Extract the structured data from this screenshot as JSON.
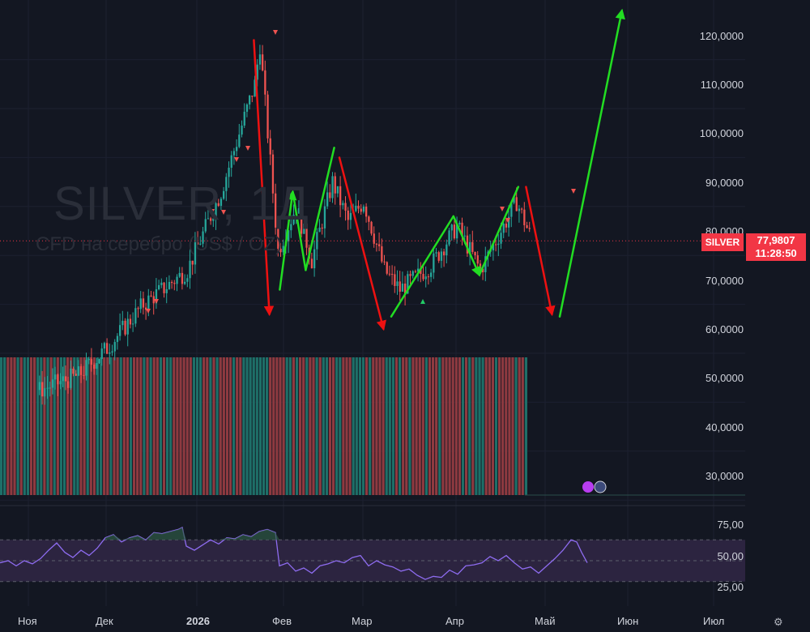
{
  "watermark": {
    "title": "SILVER, 1Д",
    "subtitle": "CFD на серебро (US$ / OZ)"
  },
  "badge": {
    "symbol": "SILVER",
    "price": "77,9807",
    "time": "11:28:50"
  },
  "price_axis": [
    "120,0000",
    "110,0000",
    "100,0000",
    "90,0000",
    "80,0000",
    "70,0000",
    "60,0000",
    "50,0000",
    "40,0000",
    "30,0000"
  ],
  "rsi_axis": [
    "75,00",
    "50,00",
    "25,00"
  ],
  "time_axis": [
    "Ноя",
    "Дек",
    "2026",
    "Фев",
    "Мар",
    "Апр",
    "Май",
    "Июн",
    "Июл"
  ],
  "icons": [
    "bolt-icon",
    "flag-icon",
    "settings-gear-icon"
  ],
  "colors": {
    "background": "#131722",
    "up": "#26a69a",
    "down": "#ef5350",
    "arrow_up": "#22dd22",
    "arrow_down": "#ee1111",
    "rsi": "#8e6cf0",
    "rsi_band": "#2c2440"
  },
  "chart_data": {
    "type": "candlestick",
    "title": "SILVER, 1Д",
    "ylabel": "",
    "ylim": [
      25,
      125
    ],
    "current_price": 77.98,
    "approx_close_path": [
      {
        "date": "2025-11-05",
        "close": 47.5
      },
      {
        "date": "2025-11-20",
        "close": 50.5
      },
      {
        "date": "2025-12-01",
        "close": 56
      },
      {
        "date": "2025-12-15",
        "close": 65
      },
      {
        "date": "2026-01-01",
        "close": 72
      },
      {
        "date": "2026-01-14",
        "close": 88
      },
      {
        "date": "2026-01-27",
        "close": 110
      },
      {
        "date": "2026-01-29",
        "close": 118
      },
      {
        "date": "2026-02-05",
        "close": 76
      },
      {
        "date": "2026-02-12",
        "close": 85
      },
      {
        "date": "2026-02-18",
        "close": 74
      },
      {
        "date": "2026-02-26",
        "close": 90
      },
      {
        "date": "2026-03-04",
        "close": 82
      },
      {
        "date": "2026-03-10",
        "close": 86
      },
      {
        "date": "2026-03-18",
        "close": 72
      },
      {
        "date": "2026-03-24",
        "close": 68
      },
      {
        "date": "2026-04-05",
        "close": 73
      },
      {
        "date": "2026-04-15",
        "close": 81
      },
      {
        "date": "2026-04-24",
        "close": 72
      },
      {
        "date": "2026-05-01",
        "close": 79
      },
      {
        "date": "2026-05-08",
        "close": 86
      },
      {
        "date": "2026-05-14",
        "close": 78
      }
    ],
    "forecast_path": [
      {
        "date": "2026-01-27",
        "price": 119
      },
      {
        "date": "2026-02-02",
        "price": 63
      },
      {
        "date": "2026-02-06",
        "price": 68
      },
      {
        "date": "2026-02-11",
        "price": 88
      },
      {
        "date": "2026-02-16",
        "price": 72
      },
      {
        "date": "2026-02-27",
        "price": 97
      },
      {
        "date": "2026-03-01",
        "price": 95
      },
      {
        "date": "2026-03-18",
        "price": 60
      },
      {
        "date": "2026-03-21",
        "price": 62.5
      },
      {
        "date": "2026-04-14",
        "price": 83
      },
      {
        "date": "2026-04-24",
        "price": 71
      },
      {
        "date": "2026-05-09",
        "price": 89
      },
      {
        "date": "2026-05-12",
        "price": 89
      },
      {
        "date": "2026-05-22",
        "price": 63
      },
      {
        "date": "2026-05-25",
        "price": 62.5
      },
      {
        "date": "2026-06-18",
        "price": 125
      }
    ],
    "rsi": {
      "ylim": [
        15,
        85
      ],
      "levels": [
        70,
        50,
        30
      ],
      "values": [
        [
          0,
          48
        ],
        [
          10,
          50
        ],
        [
          20,
          45
        ],
        [
          30,
          50
        ],
        [
          40,
          47
        ],
        [
          50,
          52
        ],
        [
          60,
          60
        ],
        [
          70,
          67
        ],
        [
          80,
          58
        ],
        [
          90,
          53
        ],
        [
          100,
          60
        ],
        [
          110,
          55
        ],
        [
          120,
          62
        ],
        [
          130,
          72
        ],
        [
          140,
          75
        ],
        [
          150,
          68
        ],
        [
          160,
          72
        ],
        [
          170,
          74
        ],
        [
          180,
          70
        ],
        [
          190,
          77
        ],
        [
          200,
          76
        ],
        [
          210,
          78
        ],
        [
          220,
          80
        ],
        [
          225,
          82
        ],
        [
          230,
          64
        ],
        [
          240,
          60
        ],
        [
          250,
          65
        ],
        [
          260,
          70
        ],
        [
          270,
          66
        ],
        [
          280,
          72
        ],
        [
          290,
          71
        ],
        [
          300,
          75
        ],
        [
          310,
          73
        ],
        [
          320,
          78
        ],
        [
          330,
          80
        ],
        [
          340,
          77
        ],
        [
          345,
          45
        ],
        [
          355,
          48
        ],
        [
          365,
          40
        ],
        [
          375,
          43
        ],
        [
          385,
          38
        ],
        [
          395,
          45
        ],
        [
          405,
          47
        ],
        [
          415,
          50
        ],
        [
          425,
          48
        ],
        [
          435,
          53
        ],
        [
          445,
          55
        ],
        [
          455,
          45
        ],
        [
          465,
          50
        ],
        [
          475,
          46
        ],
        [
          485,
          44
        ],
        [
          495,
          40
        ],
        [
          505,
          42
        ],
        [
          515,
          36
        ],
        [
          525,
          32
        ],
        [
          535,
          35
        ],
        [
          545,
          34
        ],
        [
          555,
          41
        ],
        [
          565,
          37
        ],
        [
          575,
          45
        ],
        [
          585,
          46
        ],
        [
          595,
          48
        ],
        [
          605,
          54
        ],
        [
          615,
          50
        ],
        [
          625,
          55
        ],
        [
          635,
          48
        ],
        [
          645,
          42
        ],
        [
          655,
          44
        ],
        [
          665,
          38
        ],
        [
          675,
          45
        ],
        [
          685,
          52
        ],
        [
          695,
          60
        ],
        [
          705,
          70
        ],
        [
          712,
          68
        ],
        [
          718,
          58
        ],
        [
          725,
          48
        ]
      ]
    }
  }
}
